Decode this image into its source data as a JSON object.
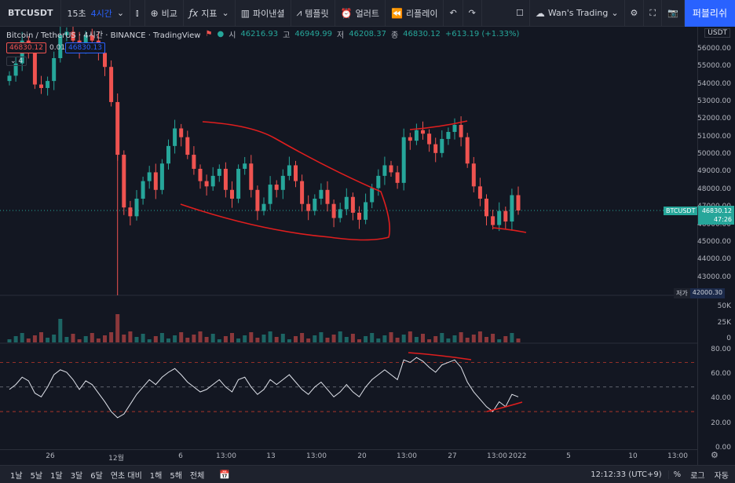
{
  "toolbar": {
    "symbol": "BTCUSDT",
    "interval_15m": "15초",
    "interval_4h": "4시간",
    "compare": "비교",
    "indicators": "지표",
    "financials": "파이낸셜",
    "templates": "템플릿",
    "alert": "얼러트",
    "replay": "리플레이",
    "layout_name": "Wan's Trading",
    "publish": "퍼블리쉬"
  },
  "legend": {
    "title": "Bitcoin / TetherUS · 4시간 · BINANCE · TradingView",
    "open_label": "시",
    "open": "46216.93",
    "high_label": "고",
    "high": "46949.99",
    "low_label": "저",
    "low": "46208.37",
    "close_label": "종",
    "close": "46830.12",
    "change": "+613.19 (+1.33%)",
    "sell_price": "46830.12",
    "spread": "0.01",
    "buy_price": "46830.13",
    "collapse_count": "4"
  },
  "price_axis": {
    "currency": "USDT",
    "labels": [
      "56000.00",
      "55000.00",
      "54000.00",
      "53000.00",
      "52000.00",
      "51000.00",
      "50000.00",
      "49000.00",
      "48000.00",
      "47000.00",
      "46000.00",
      "45000.00",
      "44000.00",
      "43000.00"
    ],
    "low_tag": "저가",
    "low_value": "42000.30",
    "symbol_tag": "BTCUSDT",
    "last_price": "46830.12",
    "countdown": "47:26",
    "volume_labels": [
      "50K",
      "25K",
      "0"
    ],
    "rsi_labels": [
      "80.00",
      "60.00",
      "40.00",
      "20.00",
      "0.00"
    ]
  },
  "time_axis": {
    "labels": [
      "26",
      "12월",
      "6",
      "13:00",
      "13",
      "13:00",
      "20",
      "13:00",
      "27",
      "13:00",
      "2022",
      "5",
      "10",
      "13:00"
    ]
  },
  "bottom_bar": {
    "ranges": [
      "1날",
      "5날",
      "1달",
      "3달",
      "6달",
      "연초 대비",
      "1해",
      "5해",
      "전체"
    ],
    "clock": "12:12:33 (UTC+9)",
    "percent": "%",
    "log": "로그",
    "auto": "자동"
  },
  "chart_data": {
    "type": "candlestick",
    "title": "Bitcoin / TetherUS · 4시간 · BINANCE",
    "ylim": [
      42000,
      57000
    ],
    "close_series": [
      54500,
      55200,
      56500,
      56000,
      54000,
      53800,
      54200,
      55500,
      56800,
      57000,
      56500,
      56000,
      56800,
      56500,
      55800,
      55000,
      53000,
      50000,
      47000,
      46500,
      47500,
      48500,
      49000,
      48000,
      49500,
      50500,
      51500,
      51000,
      50000,
      49200,
      48500,
      48200,
      48800,
      49200,
      48000,
      47500,
      49200,
      49500,
      48000,
      46800,
      47200,
      48300,
      48000,
      48800,
      49400,
      48500,
      47200,
      46800,
      47500,
      48000,
      47200,
      46400,
      46900,
      47600,
      46700,
      46300,
      47300,
      48100,
      48800,
      49400,
      49000,
      48400,
      51000,
      50800,
      51400,
      51200,
      50600,
      50100,
      50900,
      51300,
      51700,
      51000,
      49500,
      48200,
      47500,
      46500,
      46000,
      46800,
      46200,
      47700,
      46830
    ],
    "rsi_series": [
      48,
      52,
      58,
      55,
      45,
      42,
      50,
      60,
      64,
      62,
      56,
      48,
      55,
      52,
      45,
      38,
      30,
      25,
      28,
      36,
      44,
      50,
      56,
      52,
      58,
      62,
      65,
      60,
      54,
      50,
      46,
      48,
      52,
      56,
      50,
      46,
      56,
      58,
      50,
      44,
      48,
      56,
      52,
      56,
      60,
      54,
      48,
      44,
      50,
      54,
      48,
      42,
      46,
      52,
      46,
      42,
      50,
      56,
      60,
      64,
      60,
      56,
      72,
      70,
      74,
      71,
      66,
      62,
      68,
      70,
      72,
      66,
      54,
      46,
      40,
      34,
      30,
      38,
      34,
      44,
      42
    ],
    "rsi_levels": [
      70,
      50,
      30
    ]
  },
  "colors": {
    "up": "#26a69a",
    "down": "#ef5350",
    "drawing": "#e01e1e",
    "accent": "#2962ff",
    "background": "#131722"
  }
}
